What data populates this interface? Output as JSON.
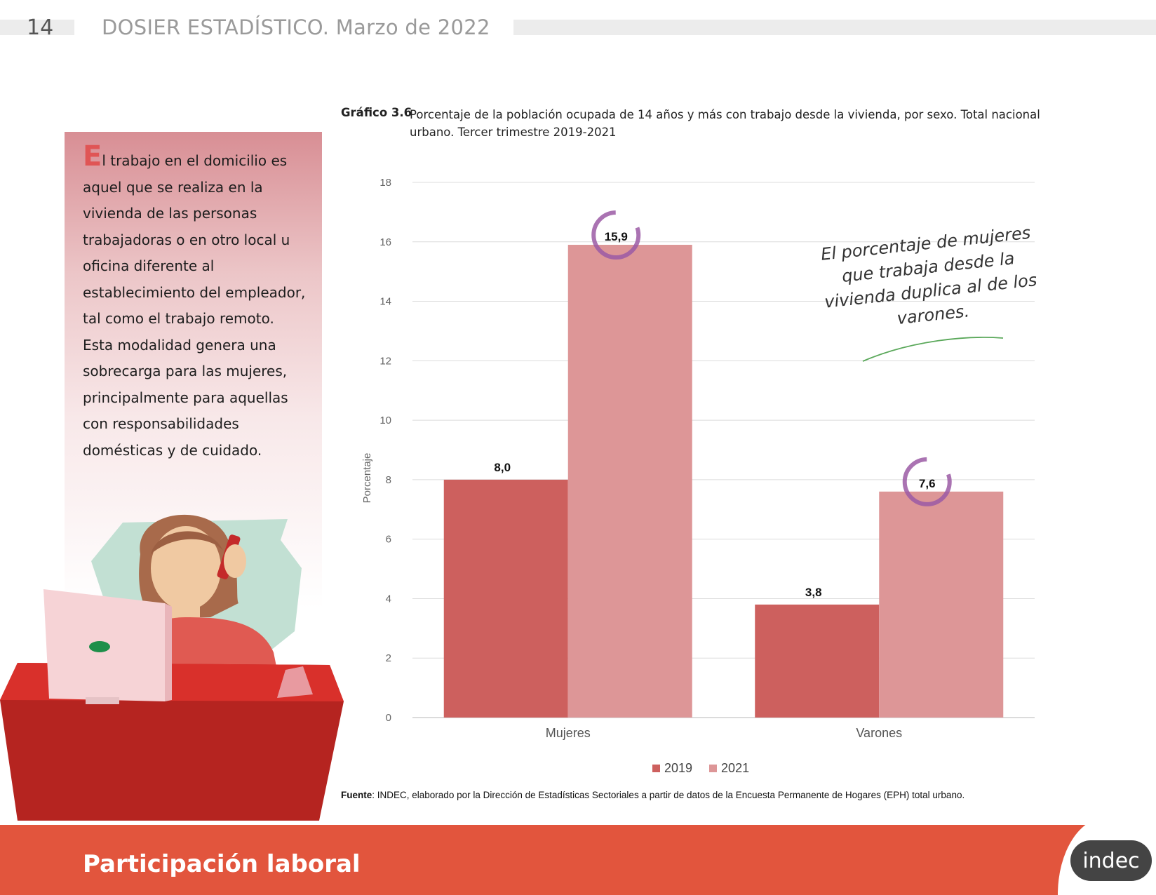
{
  "header": {
    "page_number": "14",
    "title": "DOSIER ESTADÍSTICO. Marzo de 2022"
  },
  "side_text": {
    "drop_cap": "E",
    "body": "l trabajo en el domicilio es aquel que se realiza en la vivienda de las personas trabajadoras o en otro local u oficina diferente al establecimiento del empleador, tal como el trabajo remoto. Esta modalidad genera una sobrecarga para las mujeres, principalmente para aquellas con responsabilidades domésticas y de cuidado."
  },
  "caption": {
    "label": "Gráfico 3.6",
    "text": "Porcentaje de la población ocupada de 14 años y más con trabajo desde la vivienda, por sexo. Total nacional urbano. Tercer trimestre 2019-2021"
  },
  "annotation": "El porcentaje de mujeres que trabaja desde la vivienda duplica al de los varones.",
  "source": {
    "label": "Fuente",
    "text": ": INDEC, elaborado por la Dirección de Estadísticas Sectoriales a partir de datos de la Encuesta Permanente de Hogares (EPH) total urbano."
  },
  "footer": {
    "title": "Participación laboral",
    "logo": "indec"
  },
  "colors": {
    "series_2019": "#cd605e",
    "series_2021": "#dd9697",
    "highlight": "#9b5aa5",
    "annotation_line": "#5aa85a",
    "footer": "#e2553d"
  },
  "chart_data": {
    "type": "bar",
    "categories": [
      "Mujeres",
      "Varones"
    ],
    "series": [
      {
        "name": "2019",
        "values": [
          8.0,
          3.8
        ],
        "labels": [
          "8,0",
          "3,8"
        ]
      },
      {
        "name": "2021",
        "values": [
          15.9,
          7.6
        ],
        "labels": [
          "15,9",
          "7,6"
        ]
      }
    ],
    "ylabel": "Porcentaje",
    "ylim": [
      0,
      18
    ],
    "yticks": [
      0,
      2,
      4,
      6,
      8,
      10,
      12,
      14,
      16,
      18
    ],
    "grid": true,
    "legend_position": "bottom"
  }
}
